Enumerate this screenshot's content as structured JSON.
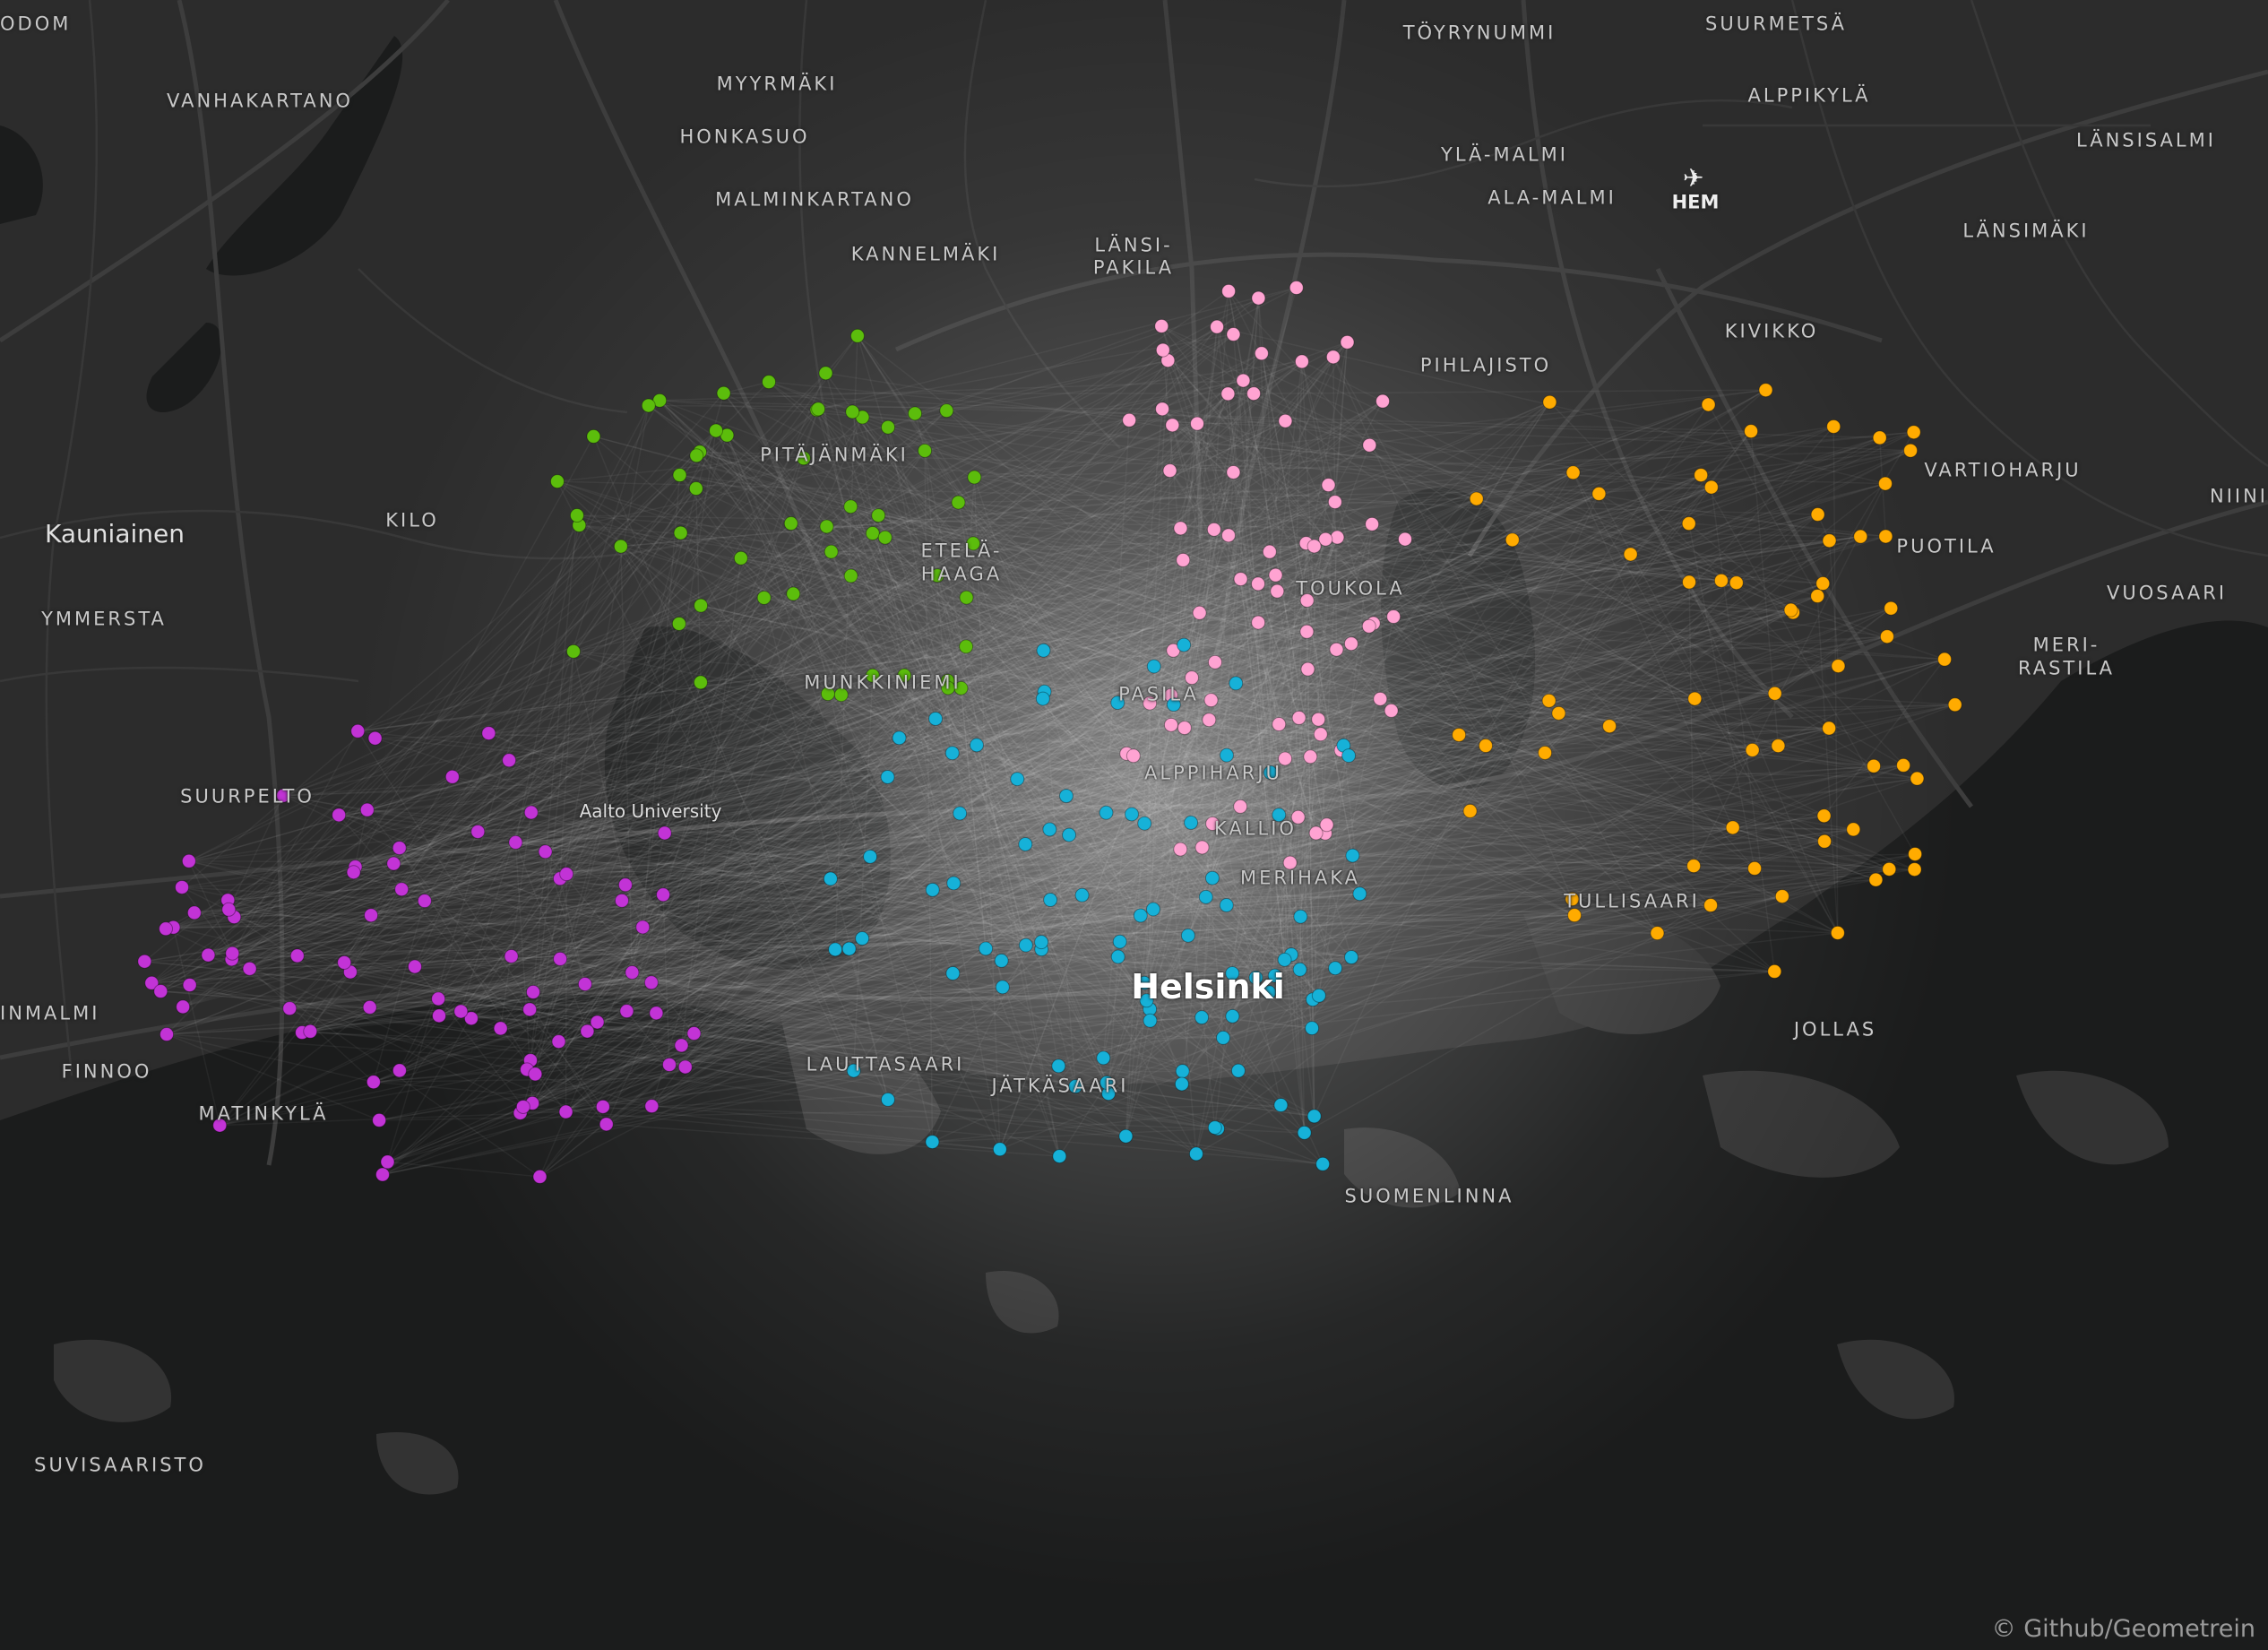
{
  "map": {
    "place_labels": {
      "odom": "ODOM",
      "vanhakartano": "VANHAKARTANO",
      "myyrmaki": "MYYRMÄKI",
      "honkasuo": "HONKASUO",
      "malminkartano": "MALMINKARTANO",
      "kannelmaki": "KANNELMÄKI",
      "lansi_pakila_1": "LÄNSI-",
      "lansi_pakila_2": "PAKILA",
      "toyrynummi": "TÖYRYNUMMI",
      "suurmetsa": "SUURMETSÄ",
      "alppikyla": "ALPPIKYLÄ",
      "yla_malmi": "YLÄ-MALMI",
      "ala_malmi": "ALA-MALMI",
      "lansisalmi": "LÄNSISALMI",
      "lansimaki": "LÄNSIMÄKI",
      "kivikko": "KIVIKKO",
      "pihlajisto": "PIHLAJISTO",
      "vartioharju": "VARTIOHARJU",
      "niini": "NIINI",
      "puotila": "PUOTILA",
      "vuosaari": "VUOSAARI",
      "meri_rastila_1": "MERI-",
      "meri_rastila_2": "RASTILA",
      "kauniainen": "Kauniainen",
      "kilo": "KILO",
      "ymmersta": "YMMERSTA",
      "pitajanmaki": "PITÄJÄNMÄKI",
      "etela_haaga_1": "ETELÄ-",
      "etela_haaga_2": "HAAGA",
      "toukola": "TOUKOLA",
      "munkkiniemi": "MUNKKINIEMI",
      "pasila": "PASILA",
      "alppiharju": "ALPPIHARJU",
      "suurpelto": "SUURPELTO",
      "aalto": "Aalto University",
      "kallio": "KALLIO",
      "merihaka": "MERIHAKA",
      "tullisaari": "TULLISAARI",
      "helsinki": "Helsinki",
      "jollas": "JOLLAS",
      "inmalmi": "INMALMI",
      "finnoo": "FINNOO",
      "lauttasaari": "LAUTTASAARI",
      "jatkasaari": "JÄTKÄSAARI",
      "matinkyla": "MATINKYLÄ",
      "suomenlinna": "SUOMENLINNA",
      "suvisaaristo": "SUVISAARISTO"
    },
    "airport": {
      "code": "HEM",
      "icon": "airplane-icon"
    },
    "attribution": "© Github/Geometrein",
    "colors": {
      "land": "#2c2c2c",
      "water": "#1b1c1c",
      "roads": "#3d3d3d",
      "flows": "#ffffff",
      "cluster_green": "#5cbd0c",
      "cluster_pink": "#ffa3d2",
      "cluster_orange": "#ffab00",
      "cluster_cyan": "#16b1d8",
      "cluster_purple": "#c233d6"
    }
  }
}
